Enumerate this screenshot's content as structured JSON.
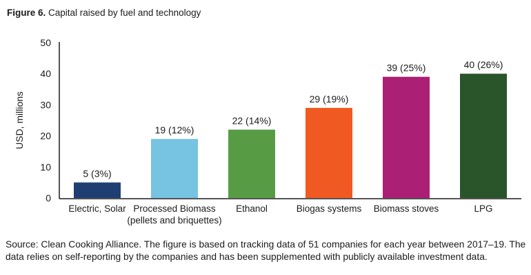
{
  "figure": {
    "label": "Figure 6.",
    "title": "Capital raised by fuel and technology"
  },
  "source_note": "Source: Clean Cooking Alliance. The figure is based on tracking data of 51 companies for each year between 2017–19. The data relies on self-reporting by the companies and has been supplemented with publicly available investment data.",
  "chart_data": {
    "type": "bar",
    "title": "Capital raised by fuel and technology",
    "xlabel": "",
    "ylabel": "USD, millions",
    "ylim": [
      0,
      50
    ],
    "yticks": [
      0,
      10,
      20,
      30,
      40,
      50
    ],
    "grid": false,
    "categories": [
      [
        "Electric, Solar"
      ],
      [
        "Processed Biomass",
        "(pellets and briquettes)"
      ],
      [
        "Ethanol"
      ],
      [
        "Biogas systems"
      ],
      [
        "Biomass stoves"
      ],
      [
        "LPG"
      ]
    ],
    "values": [
      5,
      19,
      22,
      29,
      39,
      40
    ],
    "shares_percent": [
      3,
      12,
      14,
      19,
      25,
      26
    ],
    "data_labels": [
      "5 (3%)",
      "19 (12%)",
      "22 (14%)",
      "29 (19%)",
      "39 (25%)",
      "40 (26%)"
    ],
    "colors": [
      "#1f3f73",
      "#76c3e2",
      "#579c45",
      "#f05a22",
      "#ab1f75",
      "#2a552b"
    ]
  }
}
